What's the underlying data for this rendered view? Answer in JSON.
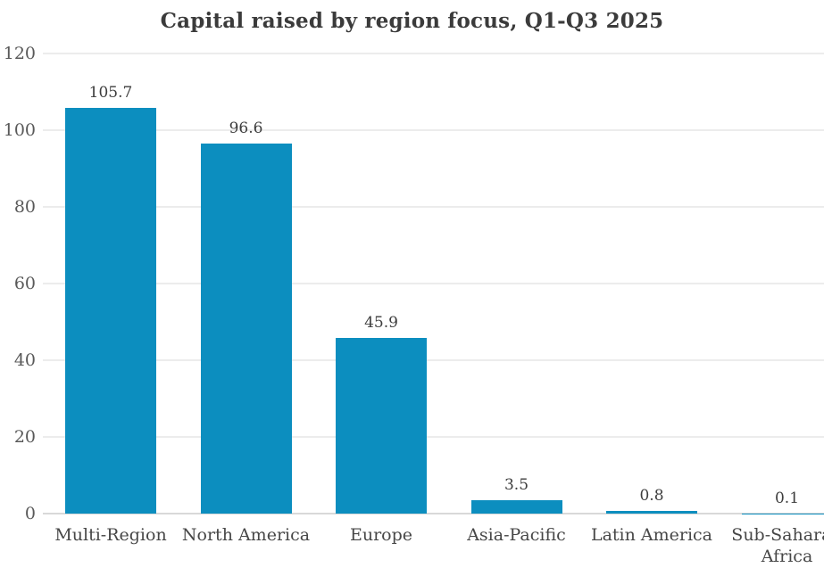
{
  "chart_data": {
    "type": "bar",
    "title": "Capital raised by region focus, Q1-Q3 2025",
    "categories": [
      "Multi-Region",
      "North America",
      "Europe",
      "Asia-Pacific",
      "Latin America",
      "Sub-Saharan Africa"
    ],
    "values": [
      105.7,
      96.6,
      45.9,
      3.5,
      0.8,
      0.1
    ],
    "value_labels": [
      "105.7",
      "96.6",
      "45.9",
      "3.5",
      "0.8",
      "0.1"
    ],
    "y_ticks": [
      "0",
      "20",
      "40",
      "60",
      "80",
      "100",
      "120"
    ],
    "y_tick_values": [
      0,
      20,
      40,
      60,
      80,
      100,
      120
    ],
    "ylim": [
      0,
      120
    ],
    "xlabel": "",
    "ylabel": "",
    "grid": "horizontal",
    "legend": "none",
    "bar_color": "#0c8ebf",
    "gridline_color": "#ececec",
    "baseline_color": "#d9d9d9",
    "title_color": "#3b3b3b",
    "tick_label_color": "#595959",
    "value_label_color": "#3d3d3d",
    "category_label_color": "#474747"
  }
}
